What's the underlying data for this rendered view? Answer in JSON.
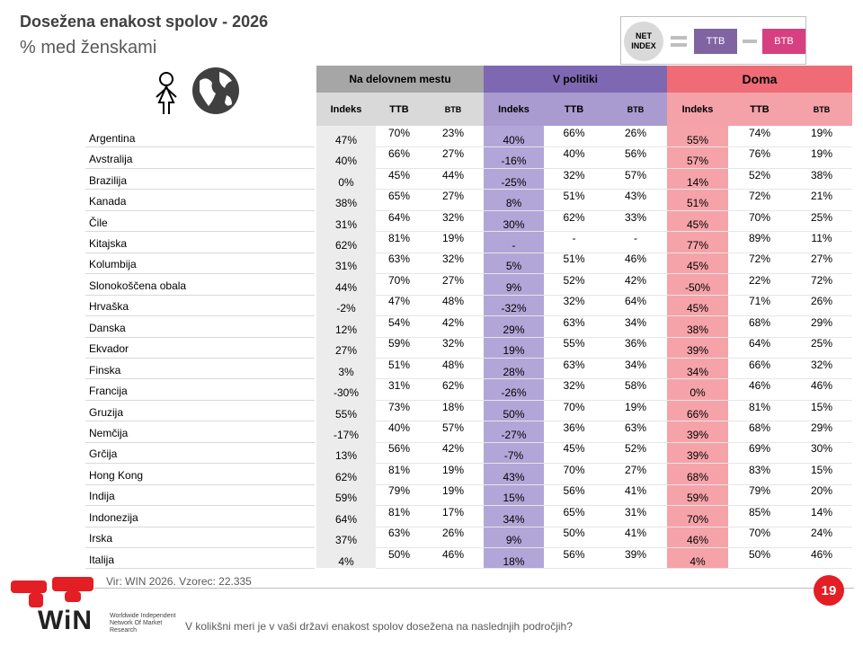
{
  "header": {
    "title": "Dosežena enakost spolov - 2026",
    "subtitle": "% med ženskami"
  },
  "legend": {
    "net": "NET INDEX",
    "ttb": "TTB",
    "btb": "BTB"
  },
  "table": {
    "groups": [
      {
        "title": "Na delovnem mestu",
        "columns": [
          "Indeks",
          "TTB",
          "BTB"
        ]
      },
      {
        "title": "V politiki",
        "columns": [
          "Indeks",
          "TTB",
          "BTB"
        ]
      },
      {
        "title": "Doma",
        "columns": [
          "Indeks",
          "TTB",
          "BTB"
        ]
      }
    ],
    "rows": [
      {
        "country": "Argentina",
        "cells": [
          "47%",
          "70%",
          "23%",
          "40%",
          "66%",
          "26%",
          "55%",
          "74%",
          "19%"
        ]
      },
      {
        "country": "Avstralija",
        "cells": [
          "40%",
          "66%",
          "27%",
          "-16%",
          "40%",
          "56%",
          "57%",
          "76%",
          "19%"
        ]
      },
      {
        "country": "Brazilija",
        "cells": [
          "0%",
          "45%",
          "44%",
          "-25%",
          "32%",
          "57%",
          "14%",
          "52%",
          "38%"
        ]
      },
      {
        "country": "Kanada",
        "cells": [
          "38%",
          "65%",
          "27%",
          "8%",
          "51%",
          "43%",
          "51%",
          "72%",
          "21%"
        ]
      },
      {
        "country": "Čile",
        "cells": [
          "31%",
          "64%",
          "32%",
          "30%",
          "62%",
          "33%",
          "45%",
          "70%",
          "25%"
        ]
      },
      {
        "country": "Kitajska",
        "cells": [
          "62%",
          "81%",
          "19%",
          "-",
          "-",
          "-",
          "77%",
          "89%",
          "11%"
        ]
      },
      {
        "country": "Kolumbija",
        "cells": [
          "31%",
          "63%",
          "32%",
          "5%",
          "51%",
          "46%",
          "45%",
          "72%",
          "27%"
        ]
      },
      {
        "country": "Slonokoščena obala",
        "cells": [
          "44%",
          "70%",
          "27%",
          "9%",
          "52%",
          "42%",
          "-50%",
          "22%",
          "72%"
        ]
      },
      {
        "country": "Hrvaška",
        "cells": [
          "-2%",
          "47%",
          "48%",
          "-32%",
          "32%",
          "64%",
          "45%",
          "71%",
          "26%"
        ]
      },
      {
        "country": "Danska",
        "cells": [
          "12%",
          "54%",
          "42%",
          "29%",
          "63%",
          "34%",
          "38%",
          "68%",
          "29%"
        ]
      },
      {
        "country": "Ekvador",
        "cells": [
          "27%",
          "59%",
          "32%",
          "19%",
          "55%",
          "36%",
          "39%",
          "64%",
          "25%"
        ]
      },
      {
        "country": "Finska",
        "cells": [
          "3%",
          "51%",
          "48%",
          "28%",
          "63%",
          "34%",
          "34%",
          "66%",
          "32%"
        ]
      },
      {
        "country": "Francija",
        "cells": [
          "-30%",
          "31%",
          "62%",
          "-26%",
          "32%",
          "58%",
          "0%",
          "46%",
          "46%"
        ]
      },
      {
        "country": "Gruzija",
        "cells": [
          "55%",
          "73%",
          "18%",
          "50%",
          "70%",
          "19%",
          "66%",
          "81%",
          "15%"
        ]
      },
      {
        "country": "Nemčija",
        "cells": [
          "-17%",
          "40%",
          "57%",
          "-27%",
          "36%",
          "63%",
          "39%",
          "68%",
          "29%"
        ]
      },
      {
        "country": "Grčija",
        "cells": [
          "13%",
          "56%",
          "42%",
          "-7%",
          "45%",
          "52%",
          "39%",
          "69%",
          "30%"
        ]
      },
      {
        "country": "Hong Kong",
        "cells": [
          "62%",
          "81%",
          "19%",
          "43%",
          "70%",
          "27%",
          "68%",
          "83%",
          "15%"
        ]
      },
      {
        "country": "Indija",
        "cells": [
          "59%",
          "79%",
          "19%",
          "15%",
          "56%",
          "41%",
          "59%",
          "79%",
          "20%"
        ]
      },
      {
        "country": "Indonezija",
        "cells": [
          "64%",
          "81%",
          "17%",
          "34%",
          "65%",
          "31%",
          "70%",
          "85%",
          "14%"
        ]
      },
      {
        "country": "Irska",
        "cells": [
          "37%",
          "63%",
          "26%",
          "9%",
          "50%",
          "41%",
          "46%",
          "70%",
          "24%"
        ]
      },
      {
        "country": "Italija",
        "cells": [
          "4%",
          "50%",
          "46%",
          "18%",
          "56%",
          "39%",
          "4%",
          "50%",
          "46%"
        ]
      }
    ]
  },
  "footer": {
    "source": "Vir: WIN 2026.  Vzorec: 22.335",
    "page": "19",
    "question": "V kolikšni meri je v vaši državi enakost spolov dosežena na naslednjih področjih?",
    "logo": "WiN",
    "logo_sub": "Worldwide Independent Network Of Market Research"
  }
}
